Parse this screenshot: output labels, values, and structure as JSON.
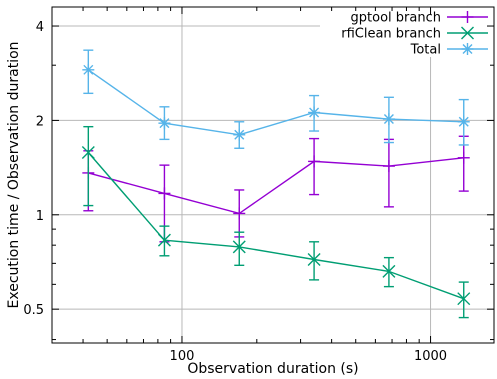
{
  "chart_data": {
    "type": "scatter",
    "xlabel": "Observation duration (s)",
    "ylabel": "Execution time / Observation duration",
    "x_scale": "log",
    "y_scale": "log",
    "xlim": [
      30,
      1800
    ],
    "ylim": [
      0.39,
      4.6
    ],
    "x_ticks": [
      100,
      1000
    ],
    "x_tick_labels": [
      "100",
      "1000"
    ],
    "y_ticks": [
      0.5,
      1,
      2,
      4
    ],
    "y_tick_labels": [
      "0.5",
      "1",
      "2",
      "4"
    ],
    "grid": true,
    "legend_position": "top-right",
    "series": [
      {
        "name": "gptool branch",
        "color": "#9400d3",
        "marker": "plus",
        "x": [
          42,
          85,
          170,
          340,
          680,
          1360
        ],
        "y": [
          1.36,
          1.17,
          1.01,
          1.48,
          1.43,
          1.52
        ],
        "err_low": [
          1.03,
          0.82,
          0.85,
          1.16,
          1.06,
          1.19
        ],
        "err_high": [
          1.6,
          1.44,
          1.2,
          1.75,
          1.74,
          1.78
        ]
      },
      {
        "name": "rfiClean branch",
        "color": "#009e73",
        "marker": "x",
        "x": [
          42,
          85,
          170,
          340,
          680,
          1360
        ],
        "y": [
          1.58,
          0.83,
          0.79,
          0.72,
          0.66,
          0.54
        ],
        "err_low": [
          1.07,
          0.74,
          0.69,
          0.62,
          0.59,
          0.47
        ],
        "err_high": [
          1.91,
          0.92,
          0.88,
          0.82,
          0.73,
          0.61
        ]
      },
      {
        "name": "Total",
        "color": "#56b4e9",
        "marker": "star",
        "x": [
          42,
          85,
          170,
          340,
          680,
          1360
        ],
        "y": [
          2.9,
          1.96,
          1.8,
          2.12,
          2.02,
          1.98
        ],
        "err_low": [
          2.44,
          1.74,
          1.63,
          1.85,
          1.7,
          1.67
        ],
        "err_high": [
          3.35,
          2.21,
          1.98,
          2.4,
          2.37,
          2.33
        ]
      }
    ]
  }
}
